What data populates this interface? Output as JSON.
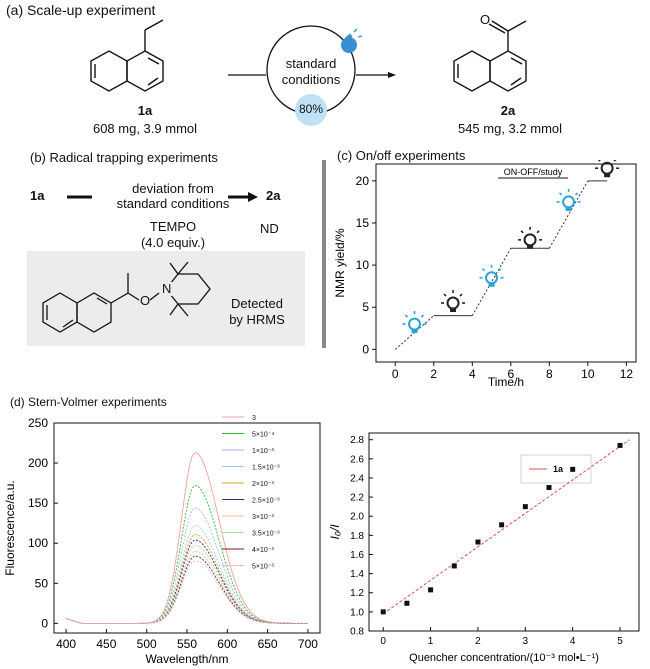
{
  "panel_a": {
    "title": "(a) Scale-up experiment",
    "reactant_label": "1a",
    "reactant_amount": "608 mg, 3.9 mmol",
    "conditions_line1": "standard",
    "conditions_line2": "conditions",
    "yield": "80%",
    "product_label": "2a",
    "product_amount": "545 mg, 3.2 mmol"
  },
  "panel_b": {
    "title": "(b) Radical trapping experiments",
    "reactant_label": "1a",
    "deviation_line1": "deviation from",
    "deviation_line2": "standard conditions",
    "reagent": "TEMPO",
    "equiv": "(4.0 equiv.)",
    "product_label": "2a",
    "result": "ND",
    "adduct_atom_n": "N",
    "adduct_atom_o": "O",
    "detected_line1": "Detected",
    "detected_line2": "by HRMS"
  },
  "chart_data": [
    {
      "type": "line",
      "title": "(c) On/off experiments",
      "legend": "ON-OFF/study",
      "xlabel": "Time/h",
      "ylabel": "NMR yield/%",
      "xlim": [
        -1,
        12.5
      ],
      "ylim": [
        -1.5,
        22
      ],
      "xticks": [
        0,
        2,
        4,
        6,
        8,
        10,
        12
      ],
      "yticks": [
        0,
        5,
        10,
        15,
        20
      ],
      "x": [
        0,
        2,
        4,
        6,
        8,
        10,
        11
      ],
      "y": [
        0,
        4,
        4,
        12,
        12,
        20,
        20
      ],
      "light_states": [
        {
          "x": 1,
          "y": 3,
          "state": "on"
        },
        {
          "x": 3,
          "y": 5.5,
          "state": "off"
        },
        {
          "x": 5,
          "y": 8.5,
          "state": "on"
        },
        {
          "x": 7,
          "y": 13,
          "state": "off"
        },
        {
          "x": 9,
          "y": 17.5,
          "state": "on"
        },
        {
          "x": 11,
          "y": 21.5,
          "state": "off"
        }
      ],
      "colors": {
        "on": "#29a3d8",
        "off": "#222222",
        "line": "#333333"
      }
    },
    {
      "type": "line",
      "title": "(d) Stern-Volmer experiments",
      "xlabel": "Wavelength/nm",
      "ylabel": "Fluorescence/a.u.",
      "xlim": [
        385,
        715
      ],
      "ylim": [
        -12,
        250
      ],
      "xticks": [
        400,
        450,
        500,
        550,
        600,
        650,
        700
      ],
      "yticks": [
        0,
        50,
        100,
        150,
        200,
        250
      ],
      "peak_x": 560,
      "series": [
        {
          "name": "3",
          "peak": 213,
          "color": "#f4a0a0"
        },
        {
          "name": "5×10⁻⁴",
          "peak": 172,
          "color": "#2bbd2b"
        },
        {
          "name": "1×10⁻³",
          "peak": 144,
          "color": "#b0b0ee"
        },
        {
          "name": "1.5×10⁻³",
          "peak": 122,
          "color": "#8fd3e6"
        },
        {
          "name": "2×10⁻³",
          "peak": 111,
          "color": "#e0a020"
        },
        {
          "name": "2.5×10⁻³",
          "peak": 104,
          "color": "#2a2a8c"
        },
        {
          "name": "3×10⁻³",
          "peak": 97,
          "color": "#f7bb9a"
        },
        {
          "name": "3.5×10⁻³",
          "peak": 90,
          "color": "#a6e0a6"
        },
        {
          "name": "4×10⁻³",
          "peak": 84,
          "color": "#8b1a1a"
        },
        {
          "name": "5×10⁻³",
          "peak": 78,
          "color": "#e8b8d8"
        }
      ]
    },
    {
      "type": "scatter",
      "legend": "1a",
      "xlabel": "Quencher concentration/(10⁻³ mol•L⁻¹)",
      "ylabel": "I₀/I",
      "xlim": [
        -0.3,
        5.4
      ],
      "ylim": [
        0.8,
        2.87
      ],
      "xticks": [
        0,
        1,
        2,
        3,
        4,
        5
      ],
      "yticks": [
        "0.8",
        "1.0",
        "1.2",
        "1.4",
        "1.6",
        "1.8",
        "2.0",
        "2.2",
        "2.4",
        "2.6",
        "2.8"
      ],
      "x": [
        0,
        0.5,
        1,
        1.5,
        2,
        2.5,
        3,
        3.5,
        4,
        5
      ],
      "y": [
        1.0,
        1.09,
        1.23,
        1.48,
        1.73,
        1.91,
        2.1,
        2.3,
        2.49,
        2.74
      ],
      "fit": {
        "slope": 0.35,
        "intercept": 0.98
      },
      "colors": {
        "point": "#111111",
        "fit": "#e05050"
      }
    }
  ]
}
